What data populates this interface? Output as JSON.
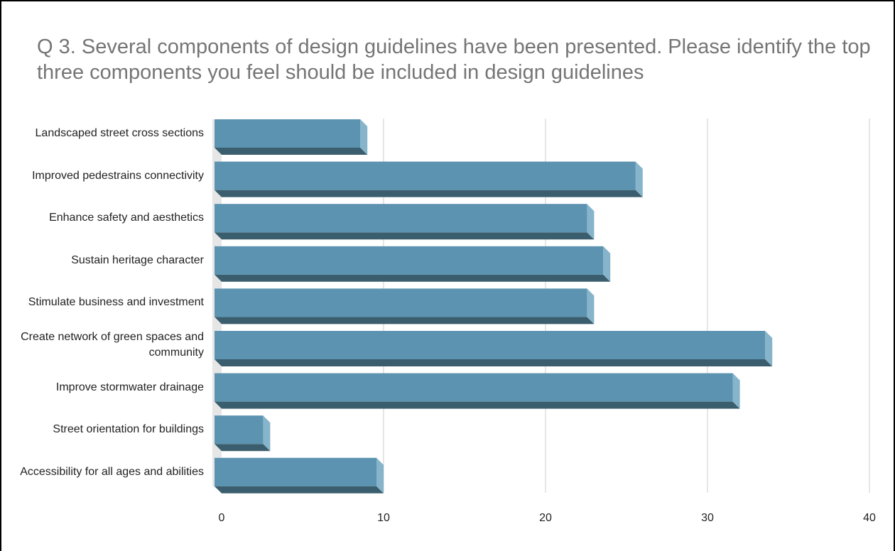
{
  "chart_data": {
    "type": "bar",
    "orientation": "horizontal",
    "title": "Q 3. Several components of design guidelines have been presented. Please identify the top three components you feel should be included in design guidelines",
    "categories": [
      "Landscaped street cross sections",
      "Improved pedestrains connectivity",
      "Enhance safety and aesthetics",
      "Sustain heritage character",
      "Stimulate business and investment",
      "Create network of green spaces and community",
      "Improve stormwater drainage",
      "Street orientation for buildings",
      "Accessibility for all ages and abilities"
    ],
    "values": [
      9,
      26,
      23,
      24,
      23,
      34,
      32,
      3,
      10
    ],
    "color": "#5b93b0",
    "xlim": [
      0,
      40
    ],
    "xticks": [
      0,
      10,
      20,
      30,
      40
    ],
    "grid": true
  }
}
